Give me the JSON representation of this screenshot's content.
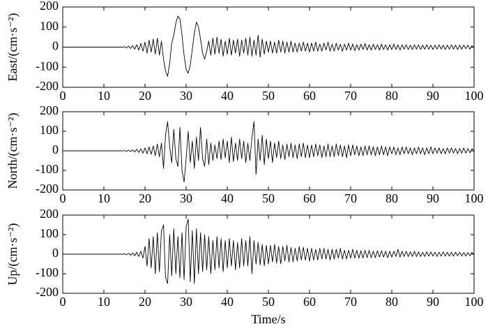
{
  "chart_data": [
    {
      "type": "line",
      "ylabel": "East/(cm·s⁻²)",
      "xlim": [
        0,
        100
      ],
      "xticks": [
        0,
        10,
        20,
        30,
        40,
        50,
        60,
        70,
        80,
        90,
        100
      ],
      "ylim": [
        -200,
        200
      ],
      "yticks": [
        -200,
        -100,
        0,
        100,
        200
      ],
      "color": "#000000",
      "x": [
        0,
        0.5,
        1,
        1.5,
        2,
        2.5,
        3,
        3.5,
        4,
        4.5,
        5,
        5.5,
        6,
        6.5,
        7,
        7.5,
        8,
        8.5,
        9,
        9.5,
        10,
        10.5,
        11,
        11.5,
        12,
        12.5,
        13,
        13.5,
        14,
        14.5,
        15,
        15.5,
        16,
        16.5,
        17,
        17.5,
        18,
        18.5,
        19,
        19.5,
        20,
        20.5,
        21,
        21.5,
        22,
        22.5,
        23,
        23.5,
        24,
        24.5,
        25,
        25.5,
        26,
        26.5,
        27,
        27.5,
        28,
        28.5,
        29,
        29.5,
        30,
        30.5,
        31,
        31.5,
        32,
        32.5,
        33,
        33.5,
        34,
        34.5,
        35,
        35.5,
        36,
        36.5,
        37,
        37.5,
        38,
        38.5,
        39,
        39.5,
        40,
        40.5,
        41,
        41.5,
        42,
        42.5,
        43,
        43.5,
        44,
        44.5,
        45,
        45.5,
        46,
        46.5,
        47,
        47.5,
        48,
        48.5,
        49,
        49.5,
        50,
        50.5,
        51,
        51.5,
        52,
        52.5,
        53,
        53.5,
        54,
        54.5,
        55,
        55.5,
        56,
        56.5,
        57,
        57.5,
        58,
        58.5,
        59,
        59.5,
        60,
        60.5,
        61,
        61.5,
        62,
        62.5,
        63,
        63.5,
        64,
        64.5,
        65,
        65.5,
        66,
        66.5,
        67,
        67.5,
        68,
        68.5,
        69,
        69.5,
        70,
        70.5,
        71,
        71.5,
        72,
        72.5,
        73,
        73.5,
        74,
        74.5,
        75,
        75.5,
        76,
        76.5,
        77,
        77.5,
        78,
        78.5,
        79,
        79.5,
        80,
        80.5,
        81,
        81.5,
        82,
        82.5,
        83,
        83.5,
        84,
        84.5,
        85,
        85.5,
        86,
        86.5,
        87,
        87.5,
        88,
        88.5,
        89,
        89.5,
        90,
        90.5,
        91,
        91.5,
        92,
        92.5,
        93,
        93.5,
        94,
        94.5,
        95,
        95.5,
        96,
        96.5,
        97,
        97.5,
        98,
        98.5,
        99,
        99.5,
        100
      ],
      "values": [
        0,
        0,
        0,
        0,
        0,
        0,
        0,
        0,
        0,
        0,
        0,
        0,
        0,
        0,
        0,
        0,
        0,
        0,
        0,
        0,
        0,
        0,
        0,
        0,
        0,
        0,
        0,
        0,
        0,
        0,
        2,
        -3,
        5,
        -6,
        8,
        -10,
        12,
        -15,
        18,
        -20,
        25,
        -30,
        35,
        -25,
        40,
        -35,
        45,
        -40,
        30,
        -60,
        -120,
        -145,
        -80,
        20,
        60,
        120,
        155,
        140,
        60,
        -40,
        -110,
        -130,
        -90,
        -10,
        70,
        125,
        100,
        40,
        -30,
        -60,
        -20,
        30,
        -40,
        45,
        -35,
        50,
        -30,
        40,
        -45,
        30,
        -35,
        45,
        -40,
        35,
        -30,
        40,
        -45,
        35,
        -30,
        45,
        -40,
        50,
        -45,
        35,
        -40,
        60,
        -50,
        40,
        -35,
        30,
        -25,
        30,
        -30,
        25,
        -30,
        35,
        -25,
        30,
        -30,
        25,
        -25,
        30,
        -25,
        20,
        -25,
        20,
        -20,
        25,
        -20,
        20,
        -25,
        20,
        -20,
        25,
        -20,
        15,
        -20,
        20,
        -15,
        25,
        -20,
        15,
        -20,
        20,
        -15,
        15,
        -20,
        15,
        -15,
        20,
        -15,
        15,
        -18,
        12,
        -15,
        15,
        -12,
        18,
        -15,
        12,
        -15,
        15,
        -12,
        12,
        -15,
        15,
        -12,
        12,
        -15,
        12,
        -12,
        15,
        -12,
        12,
        -15,
        12,
        -10,
        12,
        -12,
        10,
        -12,
        12,
        -10,
        12,
        -12,
        10,
        -10,
        12,
        -10,
        10,
        -12,
        10,
        -10,
        12,
        -10,
        10,
        -12,
        10,
        -10,
        12,
        -10,
        10,
        -12,
        10,
        -10,
        10,
        -8,
        10,
        -10,
        8,
        -5
      ]
    },
    {
      "type": "line",
      "ylabel": "North/(cm·s⁻²)",
      "xlim": [
        0,
        100
      ],
      "xticks": [
        0,
        10,
        20,
        30,
        40,
        50,
        60,
        70,
        80,
        90,
        100
      ],
      "ylim": [
        -200,
        200
      ],
      "yticks": [
        -200,
        -100,
        0,
        100,
        200
      ],
      "color": "#000000",
      "x": [
        0,
        0.5,
        1,
        1.5,
        2,
        2.5,
        3,
        3.5,
        4,
        4.5,
        5,
        5.5,
        6,
        6.5,
        7,
        7.5,
        8,
        8.5,
        9,
        9.5,
        10,
        10.5,
        11,
        11.5,
        12,
        12.5,
        13,
        13.5,
        14,
        14.5,
        15,
        15.5,
        16,
        16.5,
        17,
        17.5,
        18,
        18.5,
        19,
        19.5,
        20,
        20.5,
        21,
        21.5,
        22,
        22.5,
        23,
        23.5,
        24,
        24.5,
        25,
        25.5,
        26,
        26.5,
        27,
        27.5,
        28,
        28.5,
        29,
        29.5,
        30,
        30.5,
        31,
        31.5,
        32,
        32.5,
        33,
        33.5,
        34,
        34.5,
        35,
        35.5,
        36,
        36.5,
        37,
        37.5,
        38,
        38.5,
        39,
        39.5,
        40,
        40.5,
        41,
        41.5,
        42,
        42.5,
        43,
        43.5,
        44,
        44.5,
        45,
        45.5,
        46,
        46.5,
        47,
        47.5,
        48,
        48.5,
        49,
        49.5,
        50,
        50.5,
        51,
        51.5,
        52,
        52.5,
        53,
        53.5,
        54,
        54.5,
        55,
        55.5,
        56,
        56.5,
        57,
        57.5,
        58,
        58.5,
        59,
        59.5,
        60,
        60.5,
        61,
        61.5,
        62,
        62.5,
        63,
        63.5,
        64,
        64.5,
        65,
        65.5,
        66,
        66.5,
        67,
        67.5,
        68,
        68.5,
        69,
        69.5,
        70,
        70.5,
        71,
        71.5,
        72,
        72.5,
        73,
        73.5,
        74,
        74.5,
        75,
        75.5,
        76,
        76.5,
        77,
        77.5,
        78,
        78.5,
        79,
        79.5,
        80,
        80.5,
        81,
        81.5,
        82,
        82.5,
        83,
        83.5,
        84,
        84.5,
        85,
        85.5,
        86,
        86.5,
        87,
        87.5,
        88,
        88.5,
        89,
        89.5,
        90,
        90.5,
        91,
        91.5,
        92,
        92.5,
        93,
        93.5,
        94,
        94.5,
        95,
        95.5,
        96,
        96.5,
        97,
        97.5,
        98,
        98.5,
        99,
        99.5,
        100
      ],
      "values": [
        0,
        0,
        0,
        0,
        0,
        0,
        0,
        0,
        0,
        0,
        0,
        0,
        0,
        0,
        0,
        0,
        0,
        0,
        0,
        0,
        0,
        0,
        0,
        0,
        0,
        0,
        0,
        0,
        0,
        0,
        1,
        -2,
        3,
        -4,
        5,
        -6,
        8,
        -8,
        10,
        -12,
        15,
        -15,
        20,
        -18,
        25,
        -25,
        35,
        -30,
        40,
        -90,
        80,
        150,
        20,
        -60,
        110,
        -40,
        -80,
        120,
        -100,
        -160,
        -40,
        100,
        -60,
        50,
        -90,
        70,
        -50,
        120,
        -40,
        -80,
        60,
        -70,
        40,
        -50,
        30,
        -40,
        50,
        -45,
        60,
        -35,
        50,
        -60,
        70,
        -55,
        40,
        -50,
        60,
        -40,
        50,
        -60,
        40,
        -50,
        70,
        150,
        -120,
        60,
        -50,
        80,
        -70,
        60,
        -40,
        50,
        -60,
        40,
        -35,
        50,
        -40,
        30,
        -45,
        35,
        -30,
        40,
        -35,
        30,
        -40,
        35,
        -30,
        40,
        -35,
        30,
        -35,
        30,
        -30,
        35,
        -25,
        30,
        -35,
        25,
        -30,
        35,
        -30,
        25,
        -30,
        35,
        -25,
        30,
        -30,
        25,
        -35,
        30,
        -25,
        30,
        -20,
        25,
        -25,
        20,
        -25,
        25,
        -20,
        25,
        -20,
        20,
        -25,
        20,
        -20,
        25,
        -20,
        20,
        -25,
        20,
        -15,
        20,
        -20,
        15,
        -20,
        20,
        -15,
        20,
        -15,
        15,
        -20,
        15,
        -15,
        20,
        -15,
        15,
        -20,
        15,
        -15,
        20,
        -15,
        15,
        -12,
        15,
        -15,
        12,
        -15,
        15,
        -12,
        15,
        -12,
        12,
        -15,
        12,
        -12,
        15,
        -12,
        12,
        -10,
        12,
        -5
      ]
    },
    {
      "type": "line",
      "ylabel": "Up/(cm·s⁻²)",
      "xlabel": "Time/s",
      "xlim": [
        0,
        100
      ],
      "xticks": [
        0,
        10,
        20,
        30,
        40,
        50,
        60,
        70,
        80,
        90,
        100
      ],
      "ylim": [
        -200,
        200
      ],
      "yticks": [
        -200,
        -100,
        0,
        100,
        200
      ],
      "color": "#000000",
      "x": [
        0,
        0.5,
        1,
        1.5,
        2,
        2.5,
        3,
        3.5,
        4,
        4.5,
        5,
        5.5,
        6,
        6.5,
        7,
        7.5,
        8,
        8.5,
        9,
        9.5,
        10,
        10.5,
        11,
        11.5,
        12,
        12.5,
        13,
        13.5,
        14,
        14.5,
        15,
        15.5,
        16,
        16.5,
        17,
        17.5,
        18,
        18.5,
        19,
        19.5,
        20,
        20.5,
        21,
        21.5,
        22,
        22.5,
        23,
        23.5,
        24,
        24.5,
        25,
        25.5,
        26,
        26.5,
        27,
        27.5,
        28,
        28.5,
        29,
        29.5,
        30,
        30.5,
        31,
        31.5,
        32,
        32.5,
        33,
        33.5,
        34,
        34.5,
        35,
        35.5,
        36,
        36.5,
        37,
        37.5,
        38,
        38.5,
        39,
        39.5,
        40,
        40.5,
        41,
        41.5,
        42,
        42.5,
        43,
        43.5,
        44,
        44.5,
        45,
        45.5,
        46,
        46.5,
        47,
        47.5,
        48,
        48.5,
        49,
        49.5,
        50,
        50.5,
        51,
        51.5,
        52,
        52.5,
        53,
        53.5,
        54,
        54.5,
        55,
        55.5,
        56,
        56.5,
        57,
        57.5,
        58,
        58.5,
        59,
        59.5,
        60,
        60.5,
        61,
        61.5,
        62,
        62.5,
        63,
        63.5,
        64,
        64.5,
        65,
        65.5,
        66,
        66.5,
        67,
        67.5,
        68,
        68.5,
        69,
        69.5,
        70,
        70.5,
        71,
        71.5,
        72,
        72.5,
        73,
        73.5,
        74,
        74.5,
        75,
        75.5,
        76,
        76.5,
        77,
        77.5,
        78,
        78.5,
        79,
        79.5,
        80,
        80.5,
        81,
        81.5,
        82,
        82.5,
        83,
        83.5,
        84,
        84.5,
        85,
        85.5,
        86,
        86.5,
        87,
        87.5,
        88,
        88.5,
        89,
        89.5,
        90,
        90.5,
        91,
        91.5,
        92,
        92.5,
        93,
        93.5,
        94,
        94.5,
        95,
        95.5,
        96,
        96.5,
        97,
        97.5,
        98,
        98.5,
        99,
        99.5,
        100
      ],
      "values": [
        0,
        0,
        0,
        0,
        0,
        0,
        0,
        0,
        0,
        0,
        0,
        0,
        0,
        0,
        0,
        0,
        0,
        0,
        0,
        0,
        0,
        0,
        0,
        0,
        0,
        0,
        0,
        0,
        0,
        0,
        2,
        -3,
        4,
        -5,
        6,
        -8,
        10,
        -12,
        15,
        -20,
        40,
        -60,
        80,
        -70,
        90,
        -100,
        110,
        -90,
        120,
        150,
        -120,
        -150,
        100,
        -110,
        130,
        -100,
        90,
        -120,
        110,
        -130,
        140,
        180,
        -140,
        120,
        -150,
        130,
        -100,
        110,
        -90,
        100,
        -80,
        90,
        -100,
        70,
        -80,
        90,
        -70,
        80,
        -90,
        70,
        -70,
        80,
        -60,
        70,
        -80,
        60,
        -70,
        80,
        -60,
        70,
        -60,
        90,
        -100,
        70,
        -50,
        60,
        -55,
        50,
        -60,
        45,
        -50,
        45,
        -40,
        50,
        -45,
        40,
        -50,
        40,
        -35,
        45,
        -40,
        35,
        -40,
        30,
        -35,
        40,
        -30,
        35,
        -30,
        30,
        -35,
        30,
        -30,
        25,
        -30,
        30,
        -25,
        30,
        -25,
        25,
        -30,
        25,
        -25,
        25,
        -20,
        30,
        -25,
        20,
        -25,
        20,
        -20,
        25,
        -20,
        20,
        -20,
        18,
        -20,
        20,
        -18,
        20,
        -18,
        15,
        -18,
        18,
        -15,
        18,
        -15,
        15,
        -18,
        15,
        -15,
        15,
        -12,
        25,
        -15,
        15,
        -12,
        15,
        -12,
        12,
        -12,
        15,
        -12,
        12,
        -12,
        10,
        -12,
        12,
        -10,
        12,
        -10,
        10,
        -12,
        10,
        -10,
        12,
        -10,
        10,
        -10,
        10,
        -10,
        10,
        -8,
        10,
        -10,
        8,
        -10,
        8,
        -8,
        10,
        -5
      ]
    }
  ]
}
